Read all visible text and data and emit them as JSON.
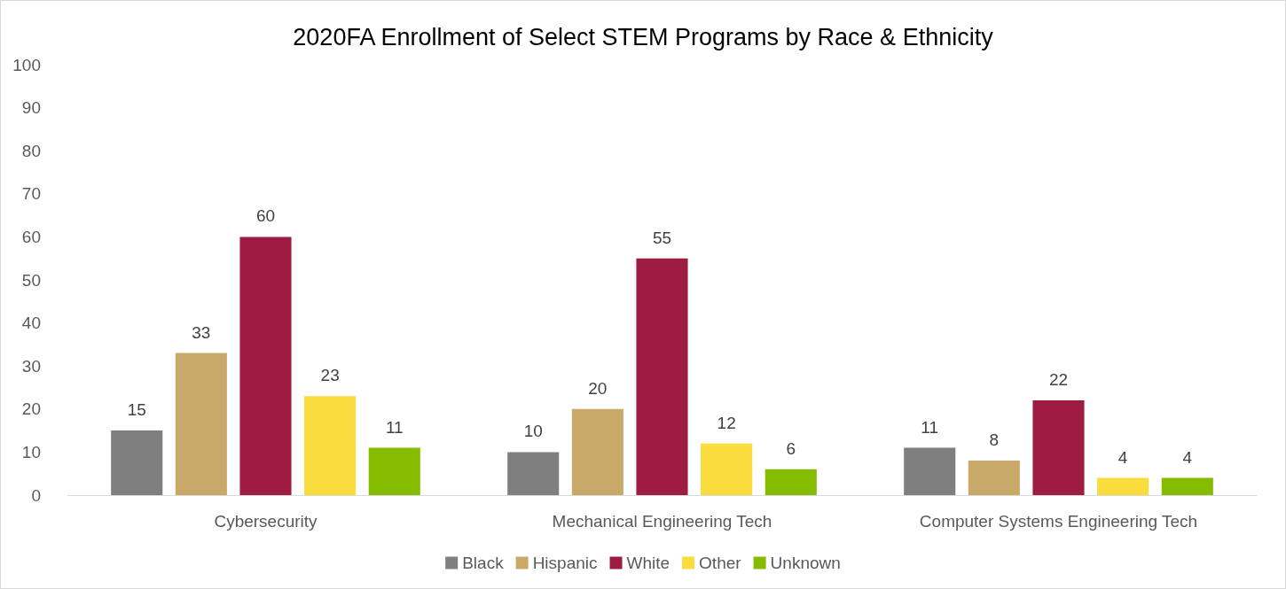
{
  "chart_data": {
    "type": "bar",
    "title": "2020FA Enrollment of Select STEM Programs by Race & Ethnicity",
    "categories": [
      "Cybersecurity",
      "Mechanical Engineering Tech",
      "Computer Systems Engineering Tech"
    ],
    "series": [
      {
        "name": "Black",
        "color": "#7f7f7f",
        "values": [
          15,
          10,
          11
        ]
      },
      {
        "name": "Hispanic",
        "color": "#c9a96a",
        "values": [
          33,
          20,
          8
        ]
      },
      {
        "name": "White",
        "color": "#9e1c42",
        "values": [
          60,
          55,
          22
        ]
      },
      {
        "name": "Other",
        "color": "#f9dc3e",
        "values": [
          23,
          12,
          4
        ]
      },
      {
        "name": "Unknown",
        "color": "#86bc00",
        "values": [
          11,
          6,
          4
        ]
      }
    ],
    "ylim": [
      0,
      100
    ],
    "yticks": [
      0,
      10,
      20,
      30,
      40,
      50,
      60,
      70,
      80,
      90,
      100
    ],
    "grid": false,
    "legend": "bottom",
    "data_labels": true
  }
}
